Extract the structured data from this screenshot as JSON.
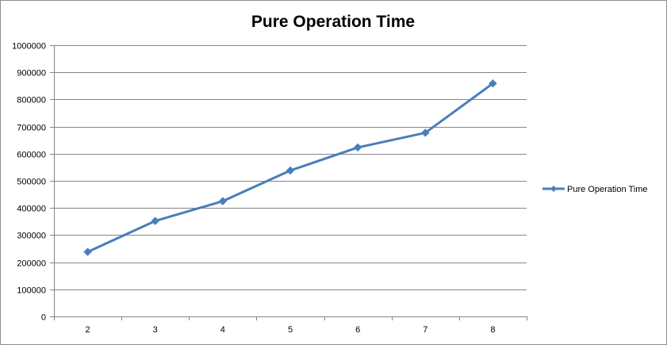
{
  "chart_data": {
    "type": "line",
    "title": "Pure Operation Time",
    "xlabel": "",
    "ylabel": "",
    "categories": [
      "2",
      "3",
      "4",
      "5",
      "6",
      "7",
      "8"
    ],
    "series": [
      {
        "name": "Pure Operation Time",
        "values": [
          238000,
          352000,
          425000,
          538000,
          623000,
          677000,
          859000
        ],
        "color": "#4a7ebb",
        "marker": "diamond"
      }
    ],
    "ylim": [
      0,
      1000000
    ],
    "yticks": [
      "0",
      "100000",
      "200000",
      "300000",
      "400000",
      "500000",
      "600000",
      "700000",
      "800000",
      "900000",
      "1000000"
    ],
    "grid": "horizontal",
    "legend": "right"
  }
}
